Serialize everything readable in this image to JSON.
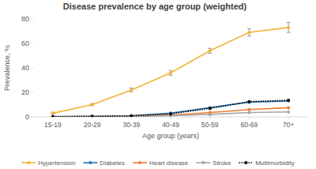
{
  "chart_data": {
    "type": "line",
    "title": "Disease prevalence by age group (weighted)",
    "x_label": "Age group (years)",
    "y_label": "Prevalence, %",
    "categories": [
      "15-19",
      "20-29",
      "30-39",
      "40-49",
      "50-59",
      "60-69",
      "70+"
    ],
    "ylim": [
      0,
      80
    ],
    "yticks": [
      0,
      20,
      40,
      60,
      80
    ],
    "grid": false,
    "legend": "bottom",
    "series": [
      {
        "name": "Hypertension",
        "color": "#f5b335",
        "marker": "circle",
        "line_style": "solid",
        "values": [
          3,
          10,
          22,
          36,
          54,
          69,
          73
        ],
        "errors": [
          0.8,
          0.8,
          1.5,
          2,
          2,
          3,
          4
        ]
      },
      {
        "name": "Diabetes",
        "color": "#2e75b6",
        "marker": "circle",
        "line_style": "solid",
        "values": [
          0.3,
          0.5,
          1,
          3,
          7.5,
          12,
          13
        ]
      },
      {
        "name": "Heart disease",
        "color": "#ed7d31",
        "marker": "circle",
        "line_style": "solid",
        "values": [
          0.2,
          0.3,
          0.6,
          1.5,
          3.5,
          6,
          7.5
        ]
      },
      {
        "name": "Stroke",
        "color": "#a5a5a5",
        "marker": "circle",
        "line_style": "solid",
        "values": [
          0,
          0.1,
          0.3,
          1,
          2,
          3.5,
          4
        ]
      },
      {
        "name": "Multimorbidity",
        "color": "#000000",
        "marker": "circle",
        "line_style": "dotted",
        "values": [
          0.1,
          0.3,
          0.8,
          2.5,
          7,
          12.5,
          13.5
        ]
      }
    ]
  }
}
